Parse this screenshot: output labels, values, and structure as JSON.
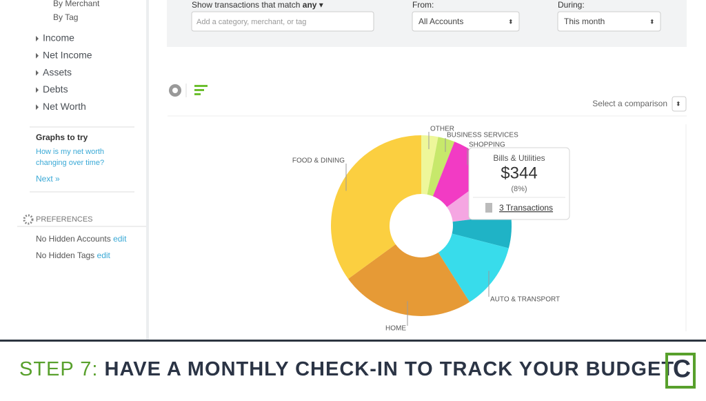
{
  "sidebar": {
    "links": [
      "By Merchant",
      "By Tag"
    ],
    "sections": [
      "Income",
      "Net Income",
      "Assets",
      "Debts",
      "Net Worth"
    ],
    "graphs_title": "Graphs to try",
    "graphs_question": [
      "How is my net worth",
      "changing over time?"
    ],
    "next": "Next »",
    "preferences_title": "PREFERENCES",
    "hidden_accounts": "No Hidden Accounts",
    "hidden_tags": "No Hidden Tags",
    "edit": "edit"
  },
  "filters": {
    "match_label": "Show transactions that match",
    "match_value": "any",
    "search_placeholder": "Add a category, merchant, or tag",
    "from_label": "From:",
    "from_value": "All Accounts",
    "during_label": "During:",
    "during_value": "This month"
  },
  "comparison": "Select a comparison",
  "chart_data": {
    "type": "donut",
    "categories": [
      "OTHER",
      "BUSINESS SERVICES",
      "SHOPPING",
      null,
      null,
      "AUTO & TRANSPORT",
      "HOME",
      "FOOD & DINING"
    ],
    "values": [
      3,
      3,
      9,
      8,
      6,
      12,
      24,
      35
    ],
    "colors": [
      "#eef79a",
      "#c7e86b",
      "#f23bc4",
      "#f5a6e2",
      "#1fb3c6",
      "#38dceb",
      "#e69a36",
      "#fbcf40"
    ]
  },
  "tooltip": {
    "category": "Bills & Utilities",
    "amount": "$344",
    "share": "(8%)",
    "transactions": "3 Transactions"
  },
  "banner": {
    "step": "STEP 7:",
    "text": "HAVE A MONTHLY CHECK-IN TO TRACK YOUR BUDGET",
    "logo": "C"
  }
}
